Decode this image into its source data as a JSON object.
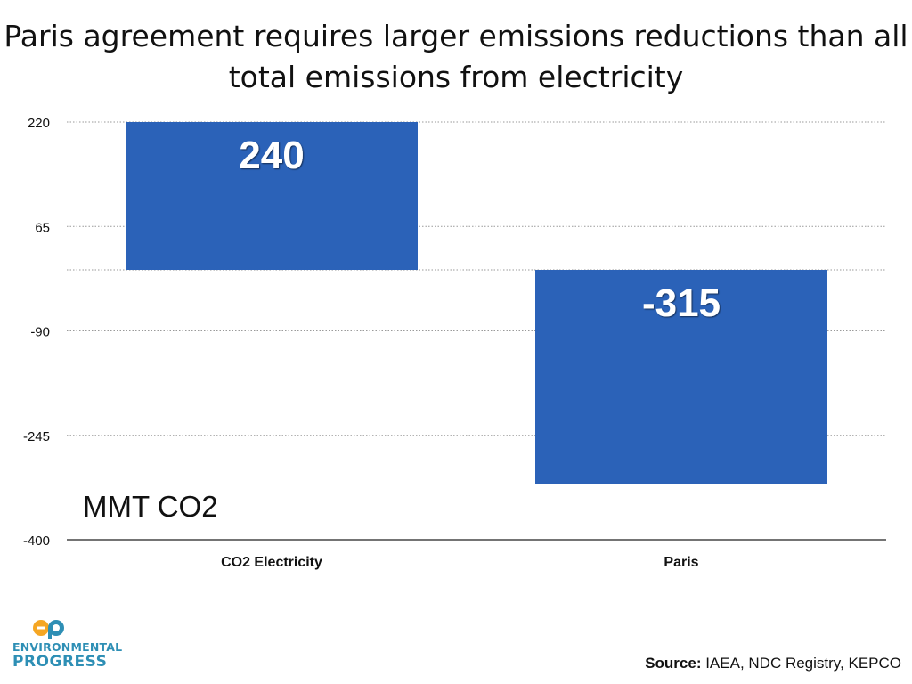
{
  "title_lines": [
    "Paris agreement requires larger emissions reductions than all",
    "total emissions from electricity"
  ],
  "unit_label": "MMT CO2",
  "source": {
    "label": "Source:",
    "text": " IAEA, NDC Registry, KEPCO"
  },
  "logo": {
    "line1": "ENVIRONMENTAL",
    "line2": "PROGRESS",
    "mark_colors": [
      "#f5a623",
      "#2e8fb5"
    ]
  },
  "chart_data": {
    "type": "bar",
    "categories": [
      "CO2 Electricity",
      "Paris"
    ],
    "values": [
      240,
      -315
    ],
    "data_labels": [
      "240",
      "-315"
    ],
    "y_ticks": [
      220,
      65,
      -90,
      -245,
      -400
    ],
    "ylim": [
      -400,
      220
    ],
    "grid": true,
    "bar_color": "#2b62b8"
  }
}
